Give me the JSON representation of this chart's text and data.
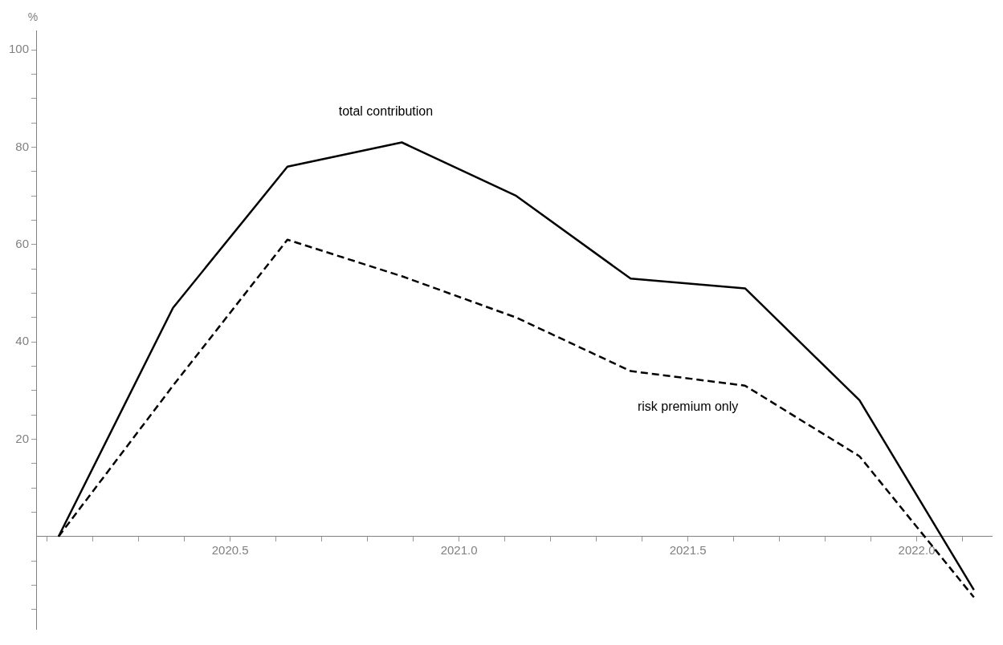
{
  "chart_data": {
    "type": "line",
    "ylabel": "%",
    "x": [
      2020.125,
      2020.375,
      2020.625,
      2020.875,
      2021.125,
      2021.375,
      2021.625,
      2021.875,
      2022.125
    ],
    "series": [
      {
        "name": "total contribution",
        "color": "#000000",
        "line_style": "solid",
        "values": [
          0,
          47,
          76,
          81,
          70,
          53,
          51,
          28,
          -11
        ]
      },
      {
        "name": "risk premium only",
        "color": "#000000",
        "line_style": "dashed",
        "values": [
          0,
          31,
          61,
          53.5,
          45,
          34,
          31,
          16.5,
          -12.5
        ]
      }
    ],
    "xlim": [
      2020.076,
      2022.164
    ],
    "ylim": [
      -19,
      104
    ],
    "xticks": [
      {
        "value": 2020.1,
        "label": null
      },
      {
        "value": 2020.2,
        "label": null
      },
      {
        "value": 2020.3,
        "label": null
      },
      {
        "value": 2020.4,
        "label": null
      },
      {
        "value": 2020.5,
        "label": "2020.5"
      },
      {
        "value": 2020.6,
        "label": null
      },
      {
        "value": 2020.7,
        "label": null
      },
      {
        "value": 2020.8,
        "label": null
      },
      {
        "value": 2020.9,
        "label": null
      },
      {
        "value": 2021,
        "label": "2021.0"
      },
      {
        "value": 2021.1,
        "label": null
      },
      {
        "value": 2021.2,
        "label": null
      },
      {
        "value": 2021.3,
        "label": null
      },
      {
        "value": 2021.4,
        "label": null
      },
      {
        "value": 2021.5,
        "label": "2021.5"
      },
      {
        "value": 2021.6,
        "label": null
      },
      {
        "value": 2021.7,
        "label": null
      },
      {
        "value": 2021.8,
        "label": null
      },
      {
        "value": 2021.9,
        "label": null
      },
      {
        "value": 2022,
        "label": "2022.0"
      },
      {
        "value": 2022.1,
        "label": null
      }
    ],
    "yticks": [
      {
        "value": -15,
        "label": null
      },
      {
        "value": -10,
        "label": null
      },
      {
        "value": -5,
        "label": null
      },
      {
        "value": 5,
        "label": null
      },
      {
        "value": 10,
        "label": null
      },
      {
        "value": 15,
        "label": null
      },
      20,
      {
        "value": 25,
        "label": null
      },
      {
        "value": 30,
        "label": null
      },
      {
        "value": 35,
        "label": null
      },
      40,
      {
        "value": 45,
        "label": null
      },
      {
        "value": 50,
        "label": null
      },
      {
        "value": 55,
        "label": null
      },
      60,
      {
        "value": 65,
        "label": null
      },
      {
        "value": 70,
        "label": null
      },
      {
        "value": 75,
        "label": null
      },
      80,
      {
        "value": 85,
        "label": null
      },
      {
        "value": 90,
        "label": null
      },
      {
        "value": 95,
        "label": null
      },
      100
    ],
    "marker": "none",
    "grid": false,
    "legend": false
  }
}
